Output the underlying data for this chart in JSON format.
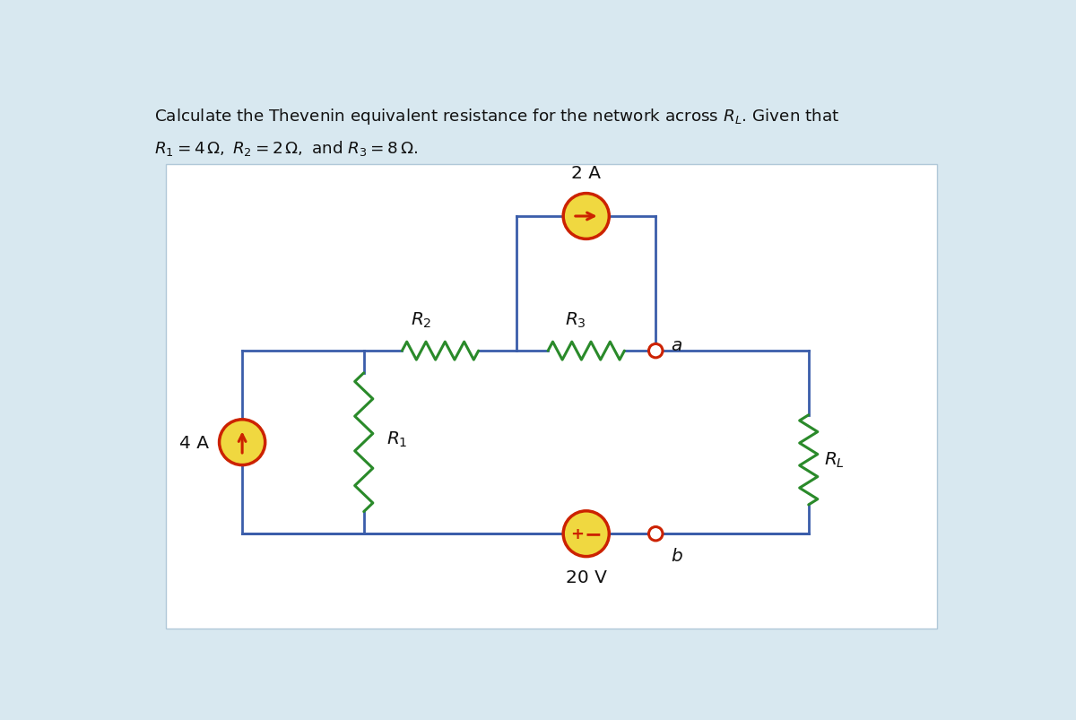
{
  "bg_color": "#d8e8f0",
  "circuit_bg": "#ffffff",
  "wire_color": "#3a5daa",
  "resistor_color": "#2a8a2a",
  "source_fill": "#f0d840",
  "source_edge": "#cc2200",
  "terminal_color": "#cc2200",
  "text_color": "#111111",
  "label_2A": "2 A",
  "label_4A": "4 A",
  "label_20V": "20 V",
  "label_R1": "$R_1$",
  "label_R2": "$R_2$",
  "label_R3": "$R_3$",
  "label_RL": "$R_L$",
  "label_a": "$a$",
  "label_b": "$b$",
  "circuit_border_color": "#b0c8d8"
}
